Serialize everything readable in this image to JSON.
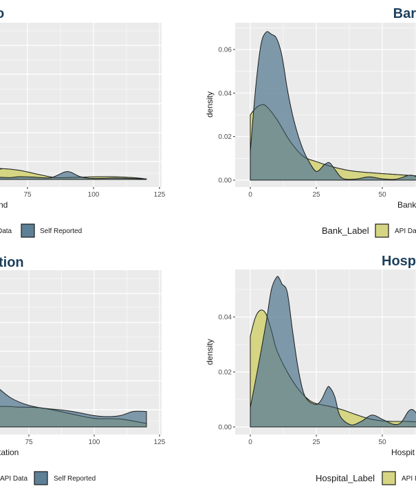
{
  "colors": {
    "api": "#d6d583",
    "self": "#5e8096",
    "overlap": "#5b7a6b",
    "panel_bg": "#ebebeb",
    "grid": "#ffffff",
    "title": "#1b3f5c"
  },
  "chart_data": [
    {
      "id": "top-left",
      "type": "area",
      "title": "o",
      "xlabel": "nd",
      "ylabel": "",
      "x_ticks": [
        75,
        100,
        125
      ],
      "xlim_visible": [
        10,
        127
      ],
      "y_ticks": [],
      "legend": {
        "title": "",
        "entries": [
          {
            "label": "Data",
            "key": "api"
          },
          {
            "label": "Self Reported",
            "key": "self"
          }
        ],
        "position": "bottom"
      },
      "grid": true,
      "series": [
        {
          "name": "API Data",
          "x": [
            10,
            60,
            65,
            72,
            80,
            86,
            95,
            105,
            115,
            120
          ],
          "y": [
            0.0045,
            0.0045,
            0.0048,
            0.004,
            0.002,
            0.0008,
            0.001,
            0.0012,
            0.0008,
            0.0002
          ]
        },
        {
          "name": "Self Reported",
          "x": [
            10,
            60,
            68,
            72,
            78,
            84,
            90,
            95,
            100,
            108,
            120
          ],
          "y": [
            0.001,
            0.001,
            0.0008,
            0.0012,
            0.001,
            0.0008,
            0.0035,
            0.0012,
            0.0004,
            0.0006,
            0.0002
          ]
        }
      ]
    },
    {
      "id": "top-right",
      "type": "area",
      "title": "Bar",
      "xlabel": "Bank",
      "ylabel": "density",
      "x_ticks": [
        0,
        25,
        50
      ],
      "y_ticks": [
        0.0,
        0.02,
        0.04,
        0.06
      ],
      "y_tick_labels": [
        "0.00",
        "0.02",
        "0.04",
        "0.06"
      ],
      "ylim": [
        -0.003,
        0.071
      ],
      "legend": {
        "title": "Bank_Label",
        "entries": [
          {
            "label": "API Da",
            "key": "api"
          }
        ],
        "position": "bottom"
      },
      "grid": true,
      "series": [
        {
          "name": "API Data",
          "x": [
            0,
            2,
            4,
            6,
            10,
            15,
            20,
            25,
            30,
            35,
            40,
            50,
            60,
            70
          ],
          "y": [
            0.03,
            0.033,
            0.0345,
            0.034,
            0.028,
            0.018,
            0.011,
            0.0085,
            0.0065,
            0.005,
            0.004,
            0.003,
            0.0022,
            0.0015
          ]
        },
        {
          "name": "Self Reported",
          "x": [
            0,
            2,
            4,
            6,
            8,
            10,
            12,
            14,
            16,
            18,
            20,
            22,
            25,
            28,
            30,
            32,
            35,
            40,
            45,
            50,
            55,
            60,
            62,
            66,
            70
          ],
          "y": [
            0.013,
            0.042,
            0.062,
            0.068,
            0.067,
            0.065,
            0.057,
            0.042,
            0.03,
            0.021,
            0.014,
            0.009,
            0.004,
            0.007,
            0.008,
            0.005,
            0.0008,
            0.0005,
            0.0015,
            0.0006,
            0.0004,
            0.0022,
            0.002,
            0.0005,
            0.0004
          ]
        }
      ]
    },
    {
      "id": "bottom-left",
      "type": "area",
      "title": "tion",
      "xlabel": "tation",
      "ylabel": "",
      "x_ticks": [
        75,
        100,
        125
      ],
      "xlim_visible": [
        10,
        127
      ],
      "y_ticks": [],
      "legend": {
        "title": "",
        "entries": [
          {
            "label": "API Data",
            "key": "api"
          },
          {
            "label": "Self Reported",
            "key": "self"
          }
        ],
        "position": "bottom"
      },
      "grid": true,
      "series": [
        {
          "name": "API Data",
          "x": [
            10,
            62,
            70,
            80,
            90,
            100,
            110,
            120
          ],
          "y": [
            0.006,
            0.006,
            0.0058,
            0.0055,
            0.004,
            0.0025,
            0.0023,
            0.001
          ]
        },
        {
          "name": "Self Reported",
          "x": [
            10,
            55,
            62,
            68,
            74,
            80,
            90,
            100,
            105,
            110,
            115,
            120
          ],
          "y": [
            0.017,
            0.015,
            0.012,
            0.0085,
            0.0065,
            0.0055,
            0.0047,
            0.0033,
            0.003,
            0.0033,
            0.0045,
            0.0045
          ]
        }
      ]
    },
    {
      "id": "bottom-right",
      "type": "area",
      "title": "Hosp",
      "xlabel": "Hospit",
      "ylabel": "density",
      "x_ticks": [
        0,
        25,
        50
      ],
      "y_ticks": [
        0.0,
        0.02,
        0.04
      ],
      "y_tick_labels": [
        "0.00",
        "0.02",
        "0.04"
      ],
      "ylim": [
        -0.002,
        0.057
      ],
      "legend": {
        "title": "Hospital_Label",
        "entries": [
          {
            "label": "API I",
            "key": "api"
          }
        ],
        "position": "bottom"
      },
      "grid": true,
      "series": [
        {
          "name": "API Data",
          "x": [
            0,
            2,
            4,
            6,
            8,
            10,
            14,
            18,
            22,
            25,
            30,
            35,
            40,
            45,
            50,
            55,
            60,
            70
          ],
          "y": [
            0.033,
            0.04,
            0.0425,
            0.041,
            0.035,
            0.028,
            0.02,
            0.014,
            0.01,
            0.0085,
            0.0075,
            0.0062,
            0.0045,
            0.003,
            0.0022,
            0.002,
            0.002,
            0.0015
          ]
        },
        {
          "name": "Self Reported",
          "x": [
            0,
            3,
            6,
            8,
            10,
            11,
            12,
            14,
            16,
            18,
            20,
            22,
            25,
            27,
            29,
            30,
            32,
            34,
            38,
            42,
            46,
            50,
            54,
            57,
            60,
            62,
            65,
            70
          ],
          "y": [
            0.007,
            0.022,
            0.038,
            0.05,
            0.0545,
            0.054,
            0.052,
            0.049,
            0.035,
            0.022,
            0.013,
            0.0095,
            0.0082,
            0.01,
            0.014,
            0.0145,
            0.011,
            0.004,
            0.0008,
            0.002,
            0.0043,
            0.0028,
            0.001,
            0.0015,
            0.0058,
            0.006,
            0.0025,
            0.0015
          ]
        }
      ]
    }
  ]
}
